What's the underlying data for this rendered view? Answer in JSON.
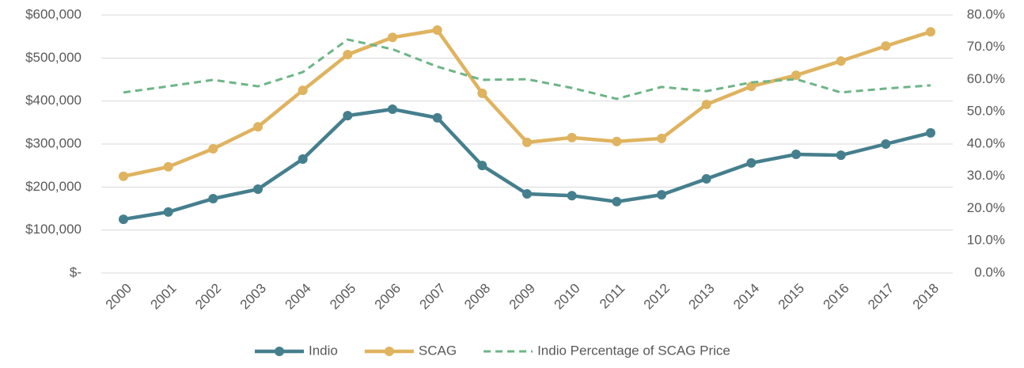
{
  "chart_data": {
    "type": "line",
    "categories": [
      "2000",
      "2001",
      "2002",
      "2003",
      "2004",
      "2005",
      "2006",
      "2007",
      "2008",
      "2009",
      "2010",
      "2011",
      "2012",
      "2013",
      "2014",
      "2015",
      "2016",
      "2017",
      "2018"
    ],
    "series": [
      {
        "name": "Indio",
        "color": "#457f8d",
        "values": [
          125000,
          142000,
          173000,
          195000,
          265000,
          366000,
          381000,
          361000,
          250000,
          184000,
          180000,
          166000,
          182000,
          219000,
          256000,
          276000,
          274000,
          300000,
          326000
        ]
      },
      {
        "name": "SCAG",
        "color": "#dfb35f",
        "values": [
          225000,
          247000,
          289000,
          340000,
          425000,
          508000,
          548000,
          565000,
          418000,
          304000,
          315000,
          306000,
          313000,
          392000,
          434000,
          460000,
          493000,
          528000,
          561000
        ]
      },
      {
        "name": "Indio Percentage of SCAG Price",
        "color": "#6db586",
        "axis": "y2",
        "dashed": true,
        "values": [
          56.0,
          57.9,
          59.9,
          57.9,
          62.3,
          72.4,
          69.4,
          64.0,
          59.9,
          60.1,
          57.4,
          54.0,
          57.7,
          56.4,
          59.1,
          60.1,
          56.0,
          57.2,
          58.2
        ]
      }
    ],
    "ylim": [
      0,
      600000
    ],
    "yticks": [
      {
        "value": 0,
        "label": "$-"
      },
      {
        "value": 100000,
        "label": "$100,000"
      },
      {
        "value": 200000,
        "label": "$200,000"
      },
      {
        "value": 300000,
        "label": "$300,000"
      },
      {
        "value": 400000,
        "label": "$400,000"
      },
      {
        "value": 500000,
        "label": "$500,000"
      },
      {
        "value": 600000,
        "label": "$600,000"
      }
    ],
    "y2lim": [
      0,
      80
    ],
    "y2ticks": [
      {
        "value": 0,
        "label": "0.0%"
      },
      {
        "value": 10,
        "label": "10.0%"
      },
      {
        "value": 20,
        "label": "20.0%"
      },
      {
        "value": 30,
        "label": "30.0%"
      },
      {
        "value": 40,
        "label": "40.0%"
      },
      {
        "value": 50,
        "label": "50.0%"
      },
      {
        "value": 60,
        "label": "60.0%"
      },
      {
        "value": 70,
        "label": "70.0%"
      },
      {
        "value": 80,
        "label": "80.0%"
      }
    ],
    "grid": true,
    "legend": "bottom"
  }
}
